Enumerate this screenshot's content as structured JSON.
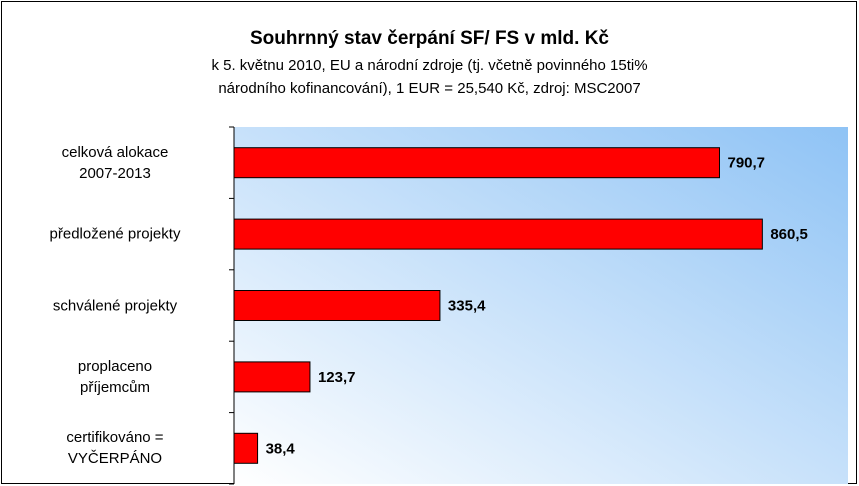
{
  "chart_data": {
    "type": "barh",
    "title": "Souhrnný stav čerpání SF/ FS v mld. Kč",
    "subtitle": "k 5. květnu 2010, EU a národní zdroje (tj. včetně povinného 15ti%\nnárodního kofinancování), 1 EUR = 25,540 Kč, zdroj: MSC2007",
    "categories": [
      "celková alokace\n2007-2013",
      "předložené projekty",
      "schválené projekty",
      "proplaceno\npříjemcům",
      "certifikováno =\nVYČERPÁNO"
    ],
    "values": [
      790.7,
      860.5,
      335.4,
      123.7,
      38.4
    ],
    "value_labels": [
      "790,7",
      "860,5",
      "335,4",
      "123,7",
      "38,4"
    ],
    "color": "#ff0000",
    "xlim": [
      0,
      1000
    ]
  }
}
